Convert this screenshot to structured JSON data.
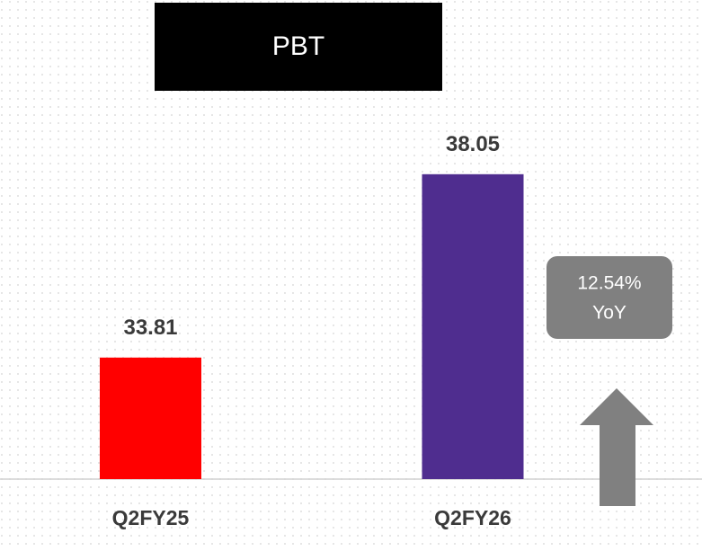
{
  "chart_data": {
    "type": "bar",
    "title": "PBT",
    "categories": [
      "Q2FY25",
      "Q2FY26"
    ],
    "values": [
      33.81,
      38.05
    ],
    "colors": [
      "#ff0000",
      "#4f2d8f"
    ],
    "ylim": [
      31,
      40
    ],
    "annotation": [
      "12.54%",
      "YoY"
    ]
  }
}
